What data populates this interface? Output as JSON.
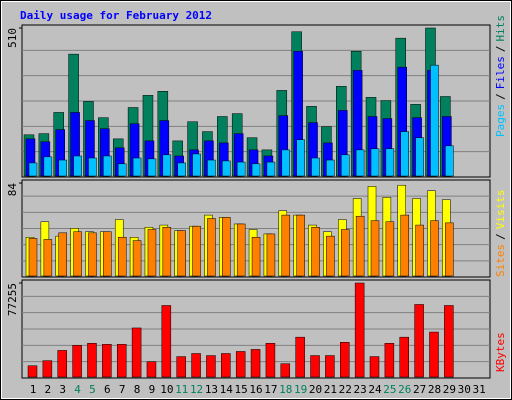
{
  "chart_data": {
    "title": "Daily usage for February 2012",
    "categories": [
      "1",
      "2",
      "3",
      "4",
      "5",
      "6",
      "7",
      "8",
      "9",
      "10",
      "11",
      "12",
      "13",
      "14",
      "15",
      "16",
      "17",
      "18",
      "19",
      "20",
      "21",
      "22",
      "23",
      "24",
      "25",
      "26",
      "27",
      "28",
      "29",
      "30",
      "31"
    ],
    "category_colors": [
      "#000000",
      "#000000",
      "#000000",
      "#00805c",
      "#00805c",
      "#000000",
      "#000000",
      "#000000",
      "#000000",
      "#000000",
      "#00805c",
      "#00805c",
      "#000000",
      "#000000",
      "#000000",
      "#000000",
      "#000000",
      "#00805c",
      "#00805c",
      "#000000",
      "#000000",
      "#000000",
      "#000000",
      "#000000",
      "#00805c",
      "#00805c",
      "#000000",
      "#000000",
      "#000000",
      "#000000",
      "#000000"
    ],
    "separator": "/",
    "panels": [
      {
        "type": "bar",
        "ylim": [
          0,
          510
        ],
        "yticks": [
          510
        ],
        "series": [
          {
            "name": "Hits",
            "color": "#00805c",
            "values": [
              142,
              146,
              219,
              420,
              257,
              201,
              128,
              236,
              278,
              292,
              121,
              187,
              153,
              205,
              215,
              132,
              90,
              295,
              497,
              240,
              170,
              309,
              430,
              271,
              260,
              475,
              247,
              510,
              274,
              null,
              null
            ]
          },
          {
            "name": "Files",
            "color": "#0000ff",
            "values": [
              128,
              118,
              160,
              219,
              191,
              163,
              97,
              180,
              121,
              191,
              69,
              90,
              121,
              114,
              146,
              90,
              69,
              208,
              430,
              184,
              114,
              226,
              364,
              205,
              198,
              375,
              201,
              364,
              205,
              null,
              null
            ]
          },
          {
            "name": "Pages",
            "color": "#00c0ff",
            "values": [
              45,
              66,
              55,
              69,
              62,
              69,
              42,
              62,
              59,
              73,
              45,
              76,
              55,
              52,
              48,
              42,
              48,
              90,
              125,
              62,
              55,
              73,
              90,
              94,
              94,
              153,
              132,
              382,
              104,
              null,
              null
            ]
          }
        ]
      },
      {
        "type": "bar",
        "ylim": [
          0,
          84
        ],
        "yticks": [
          84
        ],
        "series": [
          {
            "name": "Visits",
            "color": "#ffff00",
            "values": [
              35,
              49,
              36,
              43,
              40,
              40,
              51,
              35,
              44,
              46,
              41,
              45,
              55,
              53,
              47,
              42,
              38,
              59,
              55,
              46,
              40,
              51,
              70,
              81,
              71,
              82,
              70,
              77,
              69,
              null,
              null
            ]
          },
          {
            "name": "Sites",
            "color": "#ff8000",
            "values": [
              34,
              33,
              39,
              40,
              39,
              40,
              35,
              32,
              42,
              44,
              41,
              45,
              52,
              53,
              47,
              35,
              38,
              55,
              55,
              44,
              36,
              42,
              54,
              50,
              49,
              55,
              46,
              50,
              48,
              null,
              null
            ]
          }
        ]
      },
      {
        "type": "bar",
        "ylim": [
          0,
          77255
        ],
        "yticks": [
          77255
        ],
        "series": [
          {
            "name": "KBytes",
            "color": "#ff0000",
            "values": [
              9236,
              13436,
              21833,
              26031,
              27711,
              26871,
              26871,
              40307,
              12596,
              58781,
              16795,
              19314,
              17634,
              19314,
              20993,
              22673,
              27711,
              10916,
              32749,
              17634,
              17634,
              28551,
              77255,
              16795,
              27711,
              32749,
              59621,
              36948,
              58781,
              null,
              null
            ]
          }
        ]
      }
    ]
  }
}
